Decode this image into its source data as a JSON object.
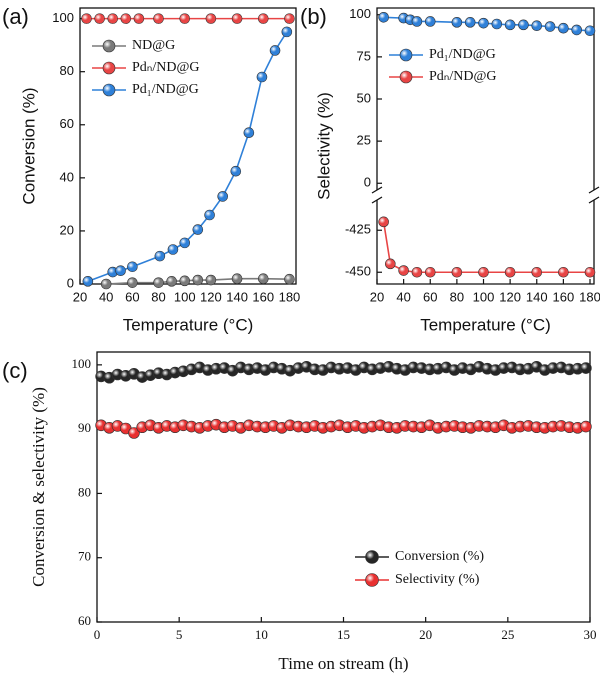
{
  "chart_data": [
    {
      "type": "line",
      "panel_label": "(a)",
      "x_label": "Temperature (°C)",
      "y_label": "Conversion (%)",
      "xlim": [
        20,
        185
      ],
      "xticks": [
        20,
        40,
        60,
        80,
        100,
        120,
        140,
        160,
        180
      ],
      "ylim": [
        0,
        104
      ],
      "yticks": [
        0,
        20,
        40,
        60,
        80,
        100
      ],
      "legend": "upper left",
      "series": [
        {
          "name": "ND@G",
          "color": "#7a7a7a",
          "x": [
            40,
            60,
            80,
            90,
            100,
            110,
            120,
            140,
            160,
            180
          ],
          "values": [
            0,
            0.5,
            0.5,
            1,
            1.2,
            1.5,
            1.5,
            2,
            2,
            1.8
          ]
        },
        {
          "name": "Pdₙ/ND@G",
          "color": "#e84545",
          "x": [
            25,
            35,
            45,
            55,
            65,
            80,
            100,
            120,
            140,
            160,
            180
          ],
          "values": [
            100,
            100,
            100,
            100,
            100,
            100,
            100,
            100,
            100,
            100,
            100
          ]
        },
        {
          "name": "Pd₁/ND@G",
          "color": "#2f80d8",
          "x": [
            26,
            45,
            51,
            60,
            81,
            91,
            100,
            110,
            119,
            129,
            139,
            149,
            159,
            169,
            178
          ],
          "values": [
            1,
            4.5,
            5,
            6.5,
            10.5,
            13,
            15.5,
            20.5,
            26,
            33,
            42.5,
            57,
            78,
            88,
            95
          ]
        }
      ]
    },
    {
      "type": "broken-line",
      "panel_label": "(b)",
      "x_label": "Temperature (°C)",
      "y_label": "Selectivity (%)",
      "xlim": [
        20,
        183
      ],
      "xticks": [
        20,
        40,
        60,
        80,
        100,
        120,
        140,
        160,
        180
      ],
      "ylim_upper": [
        -4,
        104
      ],
      "yticks_upper": [
        0,
        25,
        50,
        75,
        100
      ],
      "ylim_lower": [
        -457,
        -407
      ],
      "yticks_lower": [
        -450,
        -425
      ],
      "legend": "upper left",
      "series": [
        {
          "name": "Pd₁/ND@G",
          "color": "#2f80d8",
          "x": [
            25,
            40,
            45,
            50,
            60,
            80,
            90,
            100,
            110,
            120,
            130,
            140,
            150,
            160,
            170,
            180
          ],
          "values": [
            98.5,
            98,
            97,
            96,
            96,
            95.5,
            95.5,
            95,
            94.5,
            94,
            94,
            93.5,
            93,
            92,
            91,
            90.5
          ]
        },
        {
          "name": "Pdₙ/ND@G",
          "color": "#e84545",
          "x": [
            25,
            30,
            40,
            50,
            60,
            80,
            100,
            120,
            140,
            160,
            180
          ],
          "values": [
            -420,
            -445,
            -449,
            -450,
            -450,
            -450,
            -450,
            -450,
            -450,
            -450,
            -450
          ]
        }
      ]
    },
    {
      "type": "line",
      "panel_label": "(c)",
      "x_label": "Time on stream (h)",
      "y_label": "Conversion & selectivity (%)",
      "xlim": [
        0,
        30
      ],
      "xticks": [
        0,
        5,
        10,
        15,
        20,
        25,
        30
      ],
      "ylim": [
        60,
        102
      ],
      "yticks": [
        60,
        70,
        80,
        90,
        100
      ],
      "legend": "lower right",
      "series": [
        {
          "name": "Conversion (%)",
          "color": "#262626",
          "x": [
            0.25,
            0.75,
            1.25,
            1.75,
            2.25,
            2.75,
            3.25,
            3.75,
            4.25,
            4.75,
            5.25,
            5.75,
            6.25,
            6.75,
            7.25,
            7.75,
            8.25,
            8.75,
            9.25,
            9.75,
            10.25,
            10.75,
            11.25,
            11.75,
            12.25,
            12.75,
            13.25,
            13.75,
            14.25,
            14.75,
            15.25,
            15.75,
            16.25,
            16.75,
            17.25,
            17.75,
            18.25,
            18.75,
            19.25,
            19.75,
            20.25,
            20.75,
            21.25,
            21.75,
            22.25,
            22.75,
            23.25,
            23.75,
            24.25,
            24.75,
            25.25,
            25.75,
            26.25,
            26.75,
            27.25,
            27.75,
            28.25,
            28.75,
            29.25,
            29.75
          ],
          "values": [
            98.2,
            98.0,
            98.5,
            98.3,
            98.6,
            98.1,
            98.4,
            98.7,
            98.5,
            98.8,
            99.0,
            99.3,
            99.6,
            99.2,
            99.4,
            99.5,
            99.1,
            99.6,
            99.3,
            99.5,
            99.2,
            99.6,
            99.4,
            99.1,
            99.5,
            99.7,
            99.3,
            99.2,
            99.6,
            99.4,
            99.5,
            99.2,
            99.6,
            99.3,
            99.5,
            99.7,
            99.4,
            99.2,
            99.6,
            99.5,
            99.3,
            99.4,
            99.6,
            99.2,
            99.5,
            99.3,
            99.7,
            99.4,
            99.2,
            99.5,
            99.6,
            99.3,
            99.4,
            99.7,
            99.2,
            99.5,
            99.6,
            99.3,
            99.4,
            99.5
          ]
        },
        {
          "name": "Selectivity (%)",
          "color": "#e83030",
          "x": [
            0.25,
            0.75,
            1.25,
            1.75,
            2.25,
            2.75,
            3.25,
            3.75,
            4.25,
            4.75,
            5.25,
            5.75,
            6.25,
            6.75,
            7.25,
            7.75,
            8.25,
            8.75,
            9.25,
            9.75,
            10.25,
            10.75,
            11.25,
            11.75,
            12.25,
            12.75,
            13.25,
            13.75,
            14.25,
            14.75,
            15.25,
            15.75,
            16.25,
            16.75,
            17.25,
            17.75,
            18.25,
            18.75,
            19.25,
            19.75,
            20.25,
            20.75,
            21.25,
            21.75,
            22.25,
            22.75,
            23.25,
            23.75,
            24.25,
            24.75,
            25.25,
            25.75,
            26.25,
            26.75,
            27.25,
            27.75,
            28.25,
            28.75,
            29.25,
            29.75
          ],
          "values": [
            90.6,
            90.2,
            90.5,
            90.1,
            89.4,
            90.3,
            90.6,
            90.2,
            90.5,
            90.3,
            90.6,
            90.4,
            90.2,
            90.5,
            90.7,
            90.3,
            90.5,
            90.2,
            90.6,
            90.4,
            90.3,
            90.5,
            90.2,
            90.6,
            90.4,
            90.3,
            90.5,
            90.2,
            90.4,
            90.6,
            90.3,
            90.5,
            90.2,
            90.4,
            90.6,
            90.3,
            90.2,
            90.5,
            90.4,
            90.3,
            90.6,
            90.2,
            90.4,
            90.5,
            90.3,
            90.2,
            90.5,
            90.4,
            90.3,
            90.6,
            90.2,
            90.4,
            90.5,
            90.3,
            90.2,
            90.4,
            90.5,
            90.3,
            90.2,
            90.4
          ]
        }
      ]
    }
  ]
}
